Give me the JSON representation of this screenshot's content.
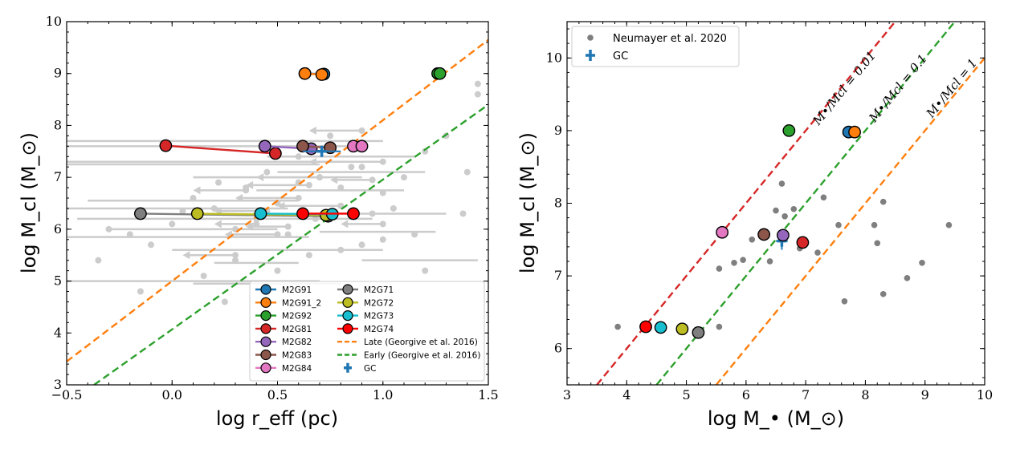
{
  "chart_data": [
    {
      "type": "scatter",
      "title": "",
      "xlabel": "log r_eff (pc)",
      "ylabel": "log M_cl (M_⊙)",
      "xlim": [
        -0.5,
        1.5
      ],
      "ylim": [
        3,
        10
      ],
      "xticks": [
        "−0.5",
        "0.0",
        "0.5",
        "1.0",
        "1.5"
      ],
      "yticks": [
        "3",
        "4",
        "5",
        "6",
        "7",
        "8",
        "9",
        "10"
      ],
      "grid": false,
      "legend_position": "lower-right",
      "colors": {
        "M2G91": "#1f77b4",
        "M2G91_2": "#ff7f0e",
        "M2G92": "#2ca02c",
        "M2G81": "#d62728",
        "M2G82": "#9467bd",
        "M2G83": "#8c564b",
        "M2G84": "#e377c2",
        "M2G71": "#7f7f7f",
        "M2G72": "#bcbd22",
        "M2G73": "#17becf",
        "M2G74": "#ff0000",
        "GC": "#1f77b4",
        "background": "#cccccc"
      },
      "tracks": [
        {
          "name": "M2G91",
          "points": [
            [
              0.63,
              9.0
            ],
            [
              0.72,
              8.99
            ]
          ]
        },
        {
          "name": "M2G91_2",
          "points": [
            [
              0.63,
              9.0
            ],
            [
              0.71,
              8.98
            ]
          ]
        },
        {
          "name": "M2G92",
          "points": [
            [
              1.26,
              9.0
            ],
            [
              1.27,
              9.0
            ]
          ]
        },
        {
          "name": "M2G81",
          "points": [
            [
              -0.03,
              7.61
            ],
            [
              0.49,
              7.46
            ]
          ]
        },
        {
          "name": "M2G82",
          "points": [
            [
              0.44,
              7.6
            ],
            [
              0.66,
              7.55
            ]
          ]
        },
        {
          "name": "M2G83",
          "points": [
            [
              0.62,
              7.6
            ],
            [
              0.75,
              7.57
            ]
          ]
        },
        {
          "name": "M2G84",
          "points": [
            [
              0.86,
              7.6
            ],
            [
              0.9,
              7.6
            ]
          ]
        },
        {
          "name": "M2G71",
          "points": [
            [
              -0.15,
              6.3
            ],
            [
              0.74,
              6.25
            ]
          ]
        },
        {
          "name": "M2G72",
          "points": [
            [
              0.12,
              6.3
            ],
            [
              0.73,
              6.27
            ]
          ]
        },
        {
          "name": "M2G73",
          "points": [
            [
              0.42,
              6.3
            ],
            [
              0.76,
              6.29
            ]
          ]
        },
        {
          "name": "M2G74",
          "points": [
            [
              0.62,
              6.3
            ],
            [
              0.86,
              6.3
            ]
          ]
        }
      ],
      "gc": {
        "name": "GC",
        "x": 0.71,
        "y": 7.5,
        "xerr": 0.09
      },
      "lines": [
        {
          "name": "Late (Georgive et al. 2016)",
          "color": "#ff7f0e",
          "points": [
            [
              -0.5,
              3.45
            ],
            [
              1.5,
              9.65
            ]
          ]
        },
        {
          "name": "Early (Georgive et al. 2016)",
          "color": "#2ca02c",
          "points": [
            [
              -0.37,
              3.0
            ],
            [
              1.5,
              8.4
            ]
          ]
        }
      ],
      "background_points": [
        [
          0.1,
          6.6
        ],
        [
          0.2,
          6.4
        ],
        [
          0.3,
          6.0
        ],
        [
          0.4,
          6.2
        ],
        [
          0.5,
          6.5
        ],
        [
          0.6,
          6.9
        ],
        [
          0.7,
          7.0
        ],
        [
          0.8,
          6.8
        ],
        [
          0.9,
          7.2
        ],
        [
          1.0,
          6.7
        ],
        [
          1.1,
          7.0
        ],
        [
          1.2,
          7.5
        ],
        [
          1.3,
          7.8
        ],
        [
          1.45,
          8.6
        ],
        [
          1.45,
          8.8
        ],
        [
          0.3,
          5.4
        ],
        [
          0.5,
          5.2
        ],
        [
          0.8,
          5.6
        ],
        [
          1.0,
          5.8
        ],
        [
          1.2,
          5.2
        ],
        [
          -0.2,
          5.9
        ],
        [
          -0.3,
          6.0
        ],
        [
          -0.35,
          5.4
        ],
        [
          -0.1,
          5.7
        ],
        [
          0.0,
          6.1
        ],
        [
          0.6,
          7.4
        ],
        [
          0.75,
          7.8
        ],
        [
          0.85,
          7.2
        ],
        [
          0.95,
          6.3
        ],
        [
          1.05,
          6.4
        ],
        [
          0.35,
          6.8
        ],
        [
          0.45,
          7.1
        ],
        [
          0.55,
          5.9
        ],
        [
          0.65,
          5.5
        ],
        [
          0.15,
          5.1
        ],
        [
          0.25,
          4.6
        ],
        [
          -0.15,
          4.8
        ],
        [
          1.38,
          6.3
        ],
        [
          1.4,
          7.1
        ],
        [
          0.05,
          6.35
        ],
        [
          0.22,
          6.9
        ],
        [
          0.68,
          6.2
        ],
        [
          0.9,
          5.7
        ],
        [
          1.15,
          5.9
        ],
        [
          0.4,
          4.2
        ]
      ],
      "background_arrows": [
        [
          0.9,
          7.9,
          -0.25,
          0
        ],
        [
          0.7,
          7.0,
          -0.3,
          0
        ],
        [
          1.0,
          7.3,
          -0.35,
          0
        ],
        [
          0.6,
          6.6,
          -0.3,
          0
        ],
        [
          0.5,
          5.9,
          -0.25,
          0
        ],
        [
          0.4,
          6.1,
          -0.2,
          0
        ],
        [
          0.35,
          6.75,
          -0.25,
          0
        ],
        [
          0.8,
          6.45,
          -0.3,
          0
        ],
        [
          0.55,
          6.05,
          -0.2,
          0
        ],
        [
          0.3,
          5.5,
          -0.25,
          0
        ],
        [
          1.0,
          6.1,
          -0.2,
          0
        ],
        [
          0.65,
          6.85,
          -0.3,
          0
        ],
        [
          0.95,
          6.95,
          -0.2,
          0
        ],
        [
          0.45,
          6.35,
          -0.25,
          0
        ]
      ],
      "background_hbars": [
        [
          -0.5,
          1.0,
          7.7
        ],
        [
          -0.5,
          0.9,
          7.6
        ],
        [
          -0.5,
          0.7,
          7.25
        ],
        [
          -0.5,
          0.8,
          7.3
        ],
        [
          -0.4,
          0.6,
          6.55
        ],
        [
          -0.5,
          0.55,
          6.4
        ],
        [
          -0.45,
          0.95,
          6.2
        ],
        [
          -0.3,
          0.5,
          6.0
        ],
        [
          -0.5,
          0.65,
          5.85
        ],
        [
          0.0,
          1.0,
          5.6
        ],
        [
          -0.5,
          0.7,
          5.0
        ],
        [
          0.1,
          0.8,
          4.95
        ],
        [
          0.2,
          0.6,
          5.35
        ],
        [
          0.5,
          1.2,
          7.1
        ],
        [
          0.6,
          1.3,
          6.3
        ],
        [
          0.7,
          1.25,
          5.95
        ],
        [
          0.4,
          1.1,
          6.75
        ],
        [
          0.1,
          0.9,
          7.0
        ],
        [
          0.45,
          1.15,
          7.4
        ],
        [
          0.9,
          1.45,
          5.4
        ]
      ],
      "legend": [
        "M2G91",
        "M2G91_2",
        "M2G92",
        "M2G81",
        "M2G82",
        "M2G83",
        "M2G84",
        "M2G71",
        "M2G72",
        "M2G73",
        "M2G74",
        "Late (Georgive et al. 2016)",
        "Early (Georgive et al. 2016)",
        "GC"
      ]
    },
    {
      "type": "scatter",
      "title": "",
      "xlabel": "log M_• (M_⊙)",
      "ylabel": "log M_cl (M_⊙)",
      "xlim": [
        3,
        10
      ],
      "ylim": [
        5.5,
        10.5
      ],
      "xticks": [
        "3",
        "4",
        "5",
        "6",
        "7",
        "8",
        "9",
        "10"
      ],
      "yticks": [
        "6",
        "7",
        "8",
        "9",
        "10"
      ],
      "grid": false,
      "legend_position": "top-left",
      "legend": [
        "Neumayer et al. 2020",
        "GC"
      ],
      "neumayer_points": [
        [
          3.85,
          6.3
        ],
        [
          5.55,
          6.3
        ],
        [
          5.55,
          7.1
        ],
        [
          5.8,
          7.18
        ],
        [
          5.95,
          7.22
        ],
        [
          6.1,
          7.5
        ],
        [
          6.4,
          7.2
        ],
        [
          6.5,
          7.9
        ],
        [
          6.6,
          8.27
        ],
        [
          6.65,
          7.82
        ],
        [
          6.8,
          7.92
        ],
        [
          6.9,
          7.38
        ],
        [
          7.2,
          7.32
        ],
        [
          7.3,
          8.08
        ],
        [
          7.55,
          7.7
        ],
        [
          7.65,
          6.65
        ],
        [
          8.15,
          7.7
        ],
        [
          8.2,
          7.45
        ],
        [
          8.3,
          6.75
        ],
        [
          8.3,
          8.02
        ],
        [
          8.7,
          6.97
        ],
        [
          8.95,
          7.18
        ],
        [
          9.4,
          7.7
        ]
      ],
      "clusters": [
        {
          "name": "M2G91",
          "x": 7.72,
          "y": 8.98
        },
        {
          "name": "M2G91_2",
          "x": 7.82,
          "y": 8.98
        },
        {
          "name": "M2G92",
          "x": 6.72,
          "y": 9.0
        },
        {
          "name": "M2G81",
          "x": 6.95,
          "y": 7.46
        },
        {
          "name": "M2G82",
          "x": 6.62,
          "y": 7.56
        },
        {
          "name": "M2G83",
          "x": 6.3,
          "y": 7.57
        },
        {
          "name": "M2G84",
          "x": 5.6,
          "y": 7.6
        },
        {
          "name": "M2G71",
          "x": 5.2,
          "y": 6.22
        },
        {
          "name": "M2G72",
          "x": 4.93,
          "y": 6.27
        },
        {
          "name": "M2G73",
          "x": 4.57,
          "y": 6.29
        },
        {
          "name": "M2G74",
          "x": 4.32,
          "y": 6.3
        }
      ],
      "gc": {
        "name": "GC",
        "x": 6.6,
        "y": 7.48,
        "xerr": 0.1,
        "yerr": 0.12
      },
      "ratio_lines": [
        {
          "label": "M•/Mcl = 0.01",
          "color": "#d62728",
          "points": [
            [
              3.5,
              5.5
            ],
            [
              8.5,
              10.5
            ]
          ]
        },
        {
          "label": "M•/Mcl = 0.1",
          "color": "#2ca02c",
          "points": [
            [
              4.5,
              5.5
            ],
            [
              9.5,
              10.5
            ]
          ]
        },
        {
          "label": "M•/Mcl = 1",
          "color": "#ff7f0e",
          "points": [
            [
              5.5,
              5.5
            ],
            [
              10,
              10.0
            ]
          ]
        }
      ]
    }
  ]
}
